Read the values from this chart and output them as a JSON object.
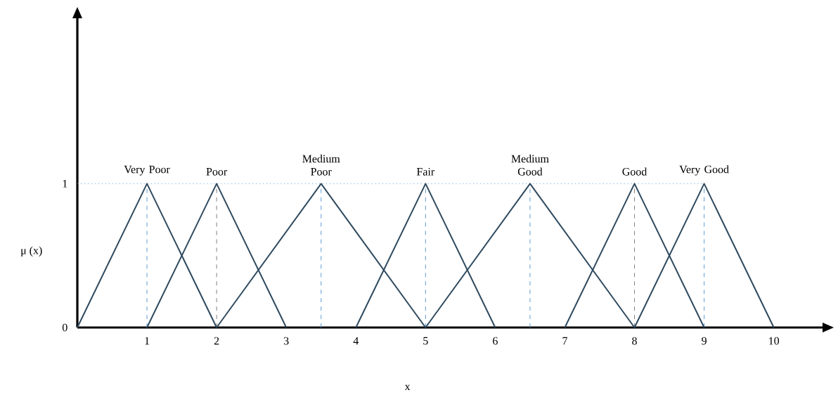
{
  "chart_data": {
    "type": "line",
    "xlabel": "x",
    "ylabel": "μ (x)",
    "xlim": [
      0,
      10.7
    ],
    "ylim": [
      0,
      2.15
    ],
    "xticks": [
      1,
      2,
      3,
      4,
      5,
      6,
      7,
      8,
      9,
      10
    ],
    "yticks": [
      0,
      1
    ],
    "marker": "none",
    "line_style": "solid",
    "legend": false,
    "grid": false,
    "series": [
      {
        "name": "Very Poor",
        "color": "#2f4a5f",
        "x": [
          0,
          1,
          2
        ],
        "values": [
          0,
          1,
          0
        ]
      },
      {
        "name": "Poor",
        "color": "#2f4a5f",
        "x": [
          1,
          2,
          3
        ],
        "values": [
          0,
          1,
          0
        ]
      },
      {
        "name": "Medium Poor",
        "color": "#2f4a5f",
        "x": [
          2,
          3.5,
          5
        ],
        "values": [
          0,
          1,
          0
        ]
      },
      {
        "name": "Fair",
        "color": "#2f4a5f",
        "x": [
          4,
          5,
          6
        ],
        "values": [
          0,
          1,
          0
        ]
      },
      {
        "name": "Medium Good",
        "color": "#2f4a5f",
        "x": [
          5,
          6.5,
          8
        ],
        "values": [
          0,
          1,
          0
        ]
      },
      {
        "name": "Good",
        "color": "#2f4a5f",
        "x": [
          7,
          8,
          9
        ],
        "values": [
          0,
          1,
          0
        ]
      },
      {
        "name": "Very Good",
        "color": "#2f4a5f",
        "x": [
          8,
          9,
          10
        ],
        "values": [
          0,
          1,
          0
        ]
      }
    ],
    "ref_lines": [
      {
        "axis": "y",
        "value": 1,
        "color": "#5b9bd5",
        "line_style": "dotted"
      },
      {
        "axis": "x",
        "value": 1,
        "color": "#5b9bd5",
        "line_style": "dashed"
      },
      {
        "axis": "x",
        "value": 2,
        "color": "#7f7f7f",
        "line_style": "dashed"
      },
      {
        "axis": "x",
        "value": 3.5,
        "color": "#5b9bd5",
        "line_style": "dashed"
      },
      {
        "axis": "x",
        "value": 5,
        "color": "#5b9bd5",
        "line_style": "dashed"
      },
      {
        "axis": "x",
        "value": 6.5,
        "color": "#5b9bd5",
        "line_style": "dashed"
      },
      {
        "axis": "x",
        "value": 8,
        "color": "#7f7f7f",
        "line_style": "dashed"
      },
      {
        "axis": "x",
        "value": 9,
        "color": "#5b9bd5",
        "line_style": "dashed"
      }
    ]
  }
}
